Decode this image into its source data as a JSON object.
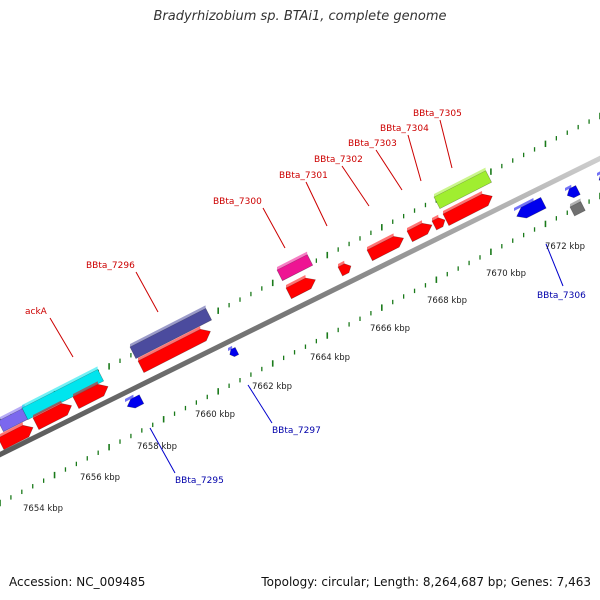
{
  "title": "Bradyrhizobium sp. BTAi1, complete genome",
  "footer": {
    "accession": "Accession: NC_009485",
    "summary": "Topology: circular; Length: 8,264,687 bp; Genes: 7,463"
  },
  "colors": {
    "forward_label": "#cc0000",
    "reverse_label": "#0000aa",
    "backbone": "#888888",
    "tick": "#1a7a1a",
    "tick_label": "#222222",
    "connector_red": "#cc0000",
    "connector_blue": "#0000cc"
  },
  "ruler_ticks": [
    {
      "label": "7654 kbp"
    },
    {
      "label": "7656 kbp"
    },
    {
      "label": "7658 kbp"
    },
    {
      "label": "7660 kbp"
    },
    {
      "label": "7662 kbp"
    },
    {
      "label": "7664 kbp"
    },
    {
      "label": "7666 kbp"
    },
    {
      "label": "7668 kbp"
    },
    {
      "label": "7670 kbp"
    },
    {
      "label": "7672 kbp"
    }
  ],
  "forward_gene_labels": [
    {
      "label": "ackA"
    },
    {
      "label": "BBta_7296"
    },
    {
      "label": "BBta_7300"
    },
    {
      "label": "BBta_7301"
    },
    {
      "label": "BBta_7302"
    },
    {
      "label": "BBta_7303"
    },
    {
      "label": "BBta_7304"
    },
    {
      "label": "BBta_7305"
    }
  ],
  "reverse_gene_labels": [
    {
      "label": "BBta_7295"
    },
    {
      "label": "BBta_7297"
    },
    {
      "label": "BBta_7306"
    }
  ],
  "feature_colors": {
    "red": "#ff0000",
    "purple": "#4b4b9e",
    "cyan": "#00e5ee",
    "violet": "#7b68ee",
    "magenta": "#ee1493",
    "lime": "#a0ee30",
    "blue": "#0000ee",
    "gray": "#707070"
  }
}
